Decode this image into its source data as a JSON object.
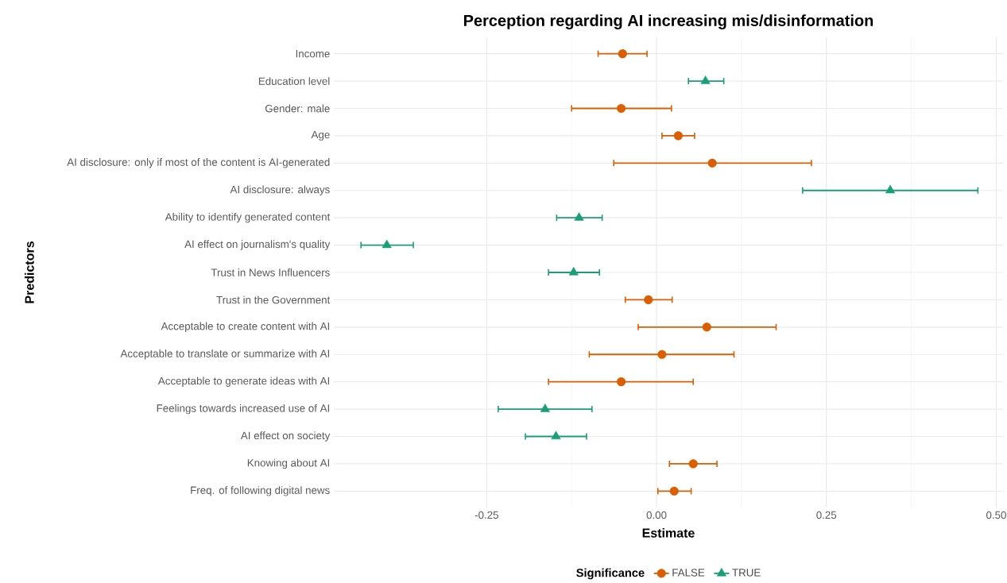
{
  "chart_data": {
    "type": "scatter",
    "orientation": "horizontal",
    "title": "Perception regarding AI increasing mis/disinformation",
    "xlabel": "Estimate",
    "ylabel": "Predictors",
    "legend_title": "Significance",
    "categories": [
      "Income",
      "Education level",
      "Gender: male",
      "Age",
      "AI disclosure: only if most of the content is AI-generated",
      "AI disclosure: always",
      "Ability to identify generated content",
      "AI effect on journalism's quality",
      "Trust in News Influencers",
      "Trust in the Government",
      "Acceptable to create content with AI",
      "Acceptable to translate or summarize with AI",
      "Acceptable to generate ideas with AI",
      "Feelings towards increased use of AI",
      "AI effect on society",
      "Knowing about AI",
      "Freq. of following digital news"
    ],
    "series": [
      {
        "name": "FALSE",
        "color": "#d95f02",
        "marker": "circle",
        "values": [
          -0.05,
          null,
          -0.052,
          0.032,
          0.082,
          null,
          null,
          null,
          null,
          -0.012,
          0.074,
          0.008,
          -0.052,
          null,
          null,
          0.054,
          0.026
        ],
        "errors": [
          [
            -0.086,
            -0.014
          ],
          null,
          [
            -0.125,
            0.022
          ],
          [
            0.008,
            0.056
          ],
          [
            -0.063,
            0.228
          ],
          null,
          null,
          null,
          null,
          [
            -0.046,
            0.023
          ],
          [
            -0.027,
            0.176
          ],
          [
            -0.099,
            0.114
          ],
          [
            -0.159,
            0.054
          ],
          null,
          null,
          [
            0.019,
            0.089
          ],
          [
            0.002,
            0.051
          ]
        ]
      },
      {
        "name": "TRUE",
        "color": "#1b9e77",
        "marker": "triangle",
        "values": [
          null,
          0.072,
          null,
          null,
          null,
          0.344,
          -0.114,
          -0.397,
          -0.122,
          null,
          null,
          null,
          null,
          -0.164,
          -0.148,
          null,
          null
        ],
        "errors": [
          null,
          [
            0.047,
            0.099
          ],
          null,
          null,
          null,
          [
            0.215,
            0.473
          ],
          [
            -0.147,
            -0.08
          ],
          [
            -0.435,
            -0.358
          ],
          [
            -0.159,
            -0.084
          ],
          null,
          null,
          null,
          null,
          [
            -0.233,
            -0.095
          ],
          [
            -0.193,
            -0.103
          ],
          null,
          null
        ]
      }
    ],
    "xlim": [
      -0.475,
      0.51
    ],
    "xticks": [
      {
        "value": -0.25,
        "label": "-0.25"
      },
      {
        "value": 0,
        "label": "0.00"
      },
      {
        "value": 0.25,
        "label": "0.25"
      },
      {
        "value": 0.5,
        "label": "0.50"
      }
    ],
    "grid": true,
    "legend": "bottom"
  }
}
